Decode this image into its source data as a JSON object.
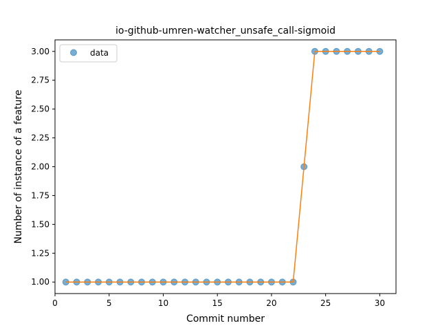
{
  "chart_data": {
    "type": "line",
    "title": "io-github-umren-watcher_unsafe_call-sigmoid",
    "xlabel": "Commit number",
    "ylabel": "Number of instance of a feature",
    "xlim": [
      0,
      31.5
    ],
    "ylim": [
      0.9,
      3.1
    ],
    "xticks": [
      0,
      5,
      10,
      15,
      20,
      25,
      30
    ],
    "xtick_labels": [
      "0",
      "5",
      "10",
      "15",
      "20",
      "25",
      "30"
    ],
    "yticks": [
      1.0,
      1.25,
      1.5,
      1.75,
      2.0,
      2.25,
      2.5,
      2.75,
      3.0
    ],
    "ytick_labels": [
      "1.00",
      "1.25",
      "1.50",
      "1.75",
      "2.00",
      "2.25",
      "2.50",
      "2.75",
      "3.00"
    ],
    "grid": false,
    "legend_position": "top-left",
    "series": [
      {
        "name": "data",
        "style": "markers",
        "color": "#1f77b4",
        "x": [
          1,
          2,
          3,
          4,
          5,
          6,
          7,
          8,
          9,
          10,
          11,
          12,
          13,
          14,
          15,
          16,
          17,
          18,
          19,
          20,
          21,
          22,
          23,
          24,
          25,
          26,
          27,
          28,
          29,
          30
        ],
        "y": [
          1,
          1,
          1,
          1,
          1,
          1,
          1,
          1,
          1,
          1,
          1,
          1,
          1,
          1,
          1,
          1,
          1,
          1,
          1,
          1,
          1,
          1,
          2,
          3,
          3,
          3,
          3,
          3,
          3,
          3
        ]
      },
      {
        "style": "line",
        "color": "#ff7f0e",
        "x": [
          1,
          2,
          3,
          4,
          5,
          6,
          7,
          8,
          9,
          10,
          11,
          12,
          13,
          14,
          15,
          16,
          17,
          18,
          19,
          20,
          21,
          22,
          23,
          24,
          25,
          26,
          27,
          28,
          29,
          30
        ],
        "y": [
          1,
          1,
          1,
          1,
          1,
          1,
          1,
          1,
          1,
          1,
          1,
          1,
          1,
          1,
          1,
          1,
          1,
          1,
          1,
          1,
          1,
          1,
          2,
          3,
          3,
          3,
          3,
          3,
          3,
          3
        ]
      }
    ]
  }
}
